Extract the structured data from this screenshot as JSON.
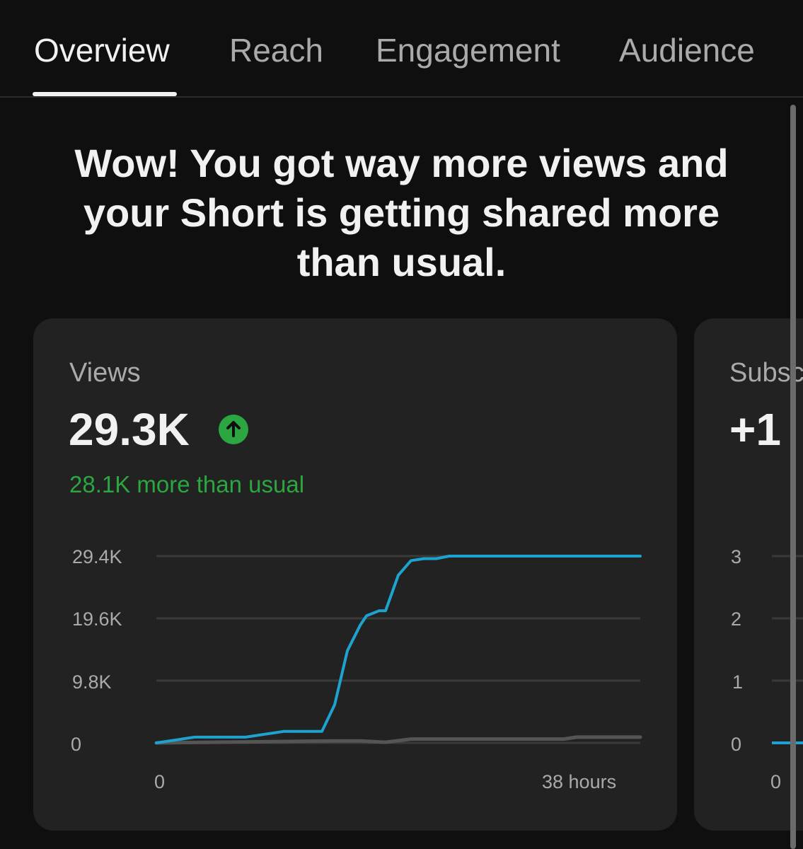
{
  "tabs": [
    {
      "label": "Overview",
      "active": true
    },
    {
      "label": "Reach",
      "active": false
    },
    {
      "label": "Engagement",
      "active": false
    },
    {
      "label": "Audience",
      "active": false
    }
  ],
  "headline": "Wow! You got way more views and your Short is getting shared more than usual.",
  "views_card": {
    "label": "Views",
    "value": "29.3K",
    "trend_icon": "arrow-up-icon",
    "delta": "28.1K more than usual",
    "chart_data": {
      "type": "line",
      "y_ticks": [
        "29.4K",
        "19.6K",
        "9.8K",
        "0"
      ],
      "ylim": [
        0,
        29400
      ],
      "x_ticks": [
        "0",
        "38 hours"
      ],
      "xlim": [
        0,
        38
      ],
      "series": [
        {
          "color": "#1ea2d0",
          "x": [
            0,
            1,
            3,
            7,
            10,
            13,
            14,
            15,
            16,
            16.5,
            17.5,
            18,
            19,
            20,
            21,
            22,
            23,
            38
          ],
          "y": [
            0,
            300,
            900,
            900,
            1800,
            1800,
            6000,
            14500,
            18500,
            20000,
            20800,
            20800,
            26400,
            28700,
            29000,
            29000,
            29400,
            29400
          ]
        },
        {
          "color": "#555555",
          "x": [
            0,
            14,
            16,
            18,
            20,
            24,
            32,
            33,
            38
          ],
          "y": [
            0,
            300,
            300,
            100,
            600,
            600,
            600,
            900,
            900
          ]
        }
      ]
    }
  },
  "subs_card": {
    "label": "Subscribers",
    "value": "+1",
    "chart_data": {
      "type": "line",
      "y_ticks": [
        "3",
        "2",
        "1",
        "0"
      ],
      "ylim": [
        0,
        3
      ],
      "x_ticks": [
        "0"
      ]
    }
  },
  "colors": {
    "background": "#0f0f0f",
    "card": "#222222",
    "accent_line": "#1ea2d0",
    "positive": "#2ba640"
  }
}
